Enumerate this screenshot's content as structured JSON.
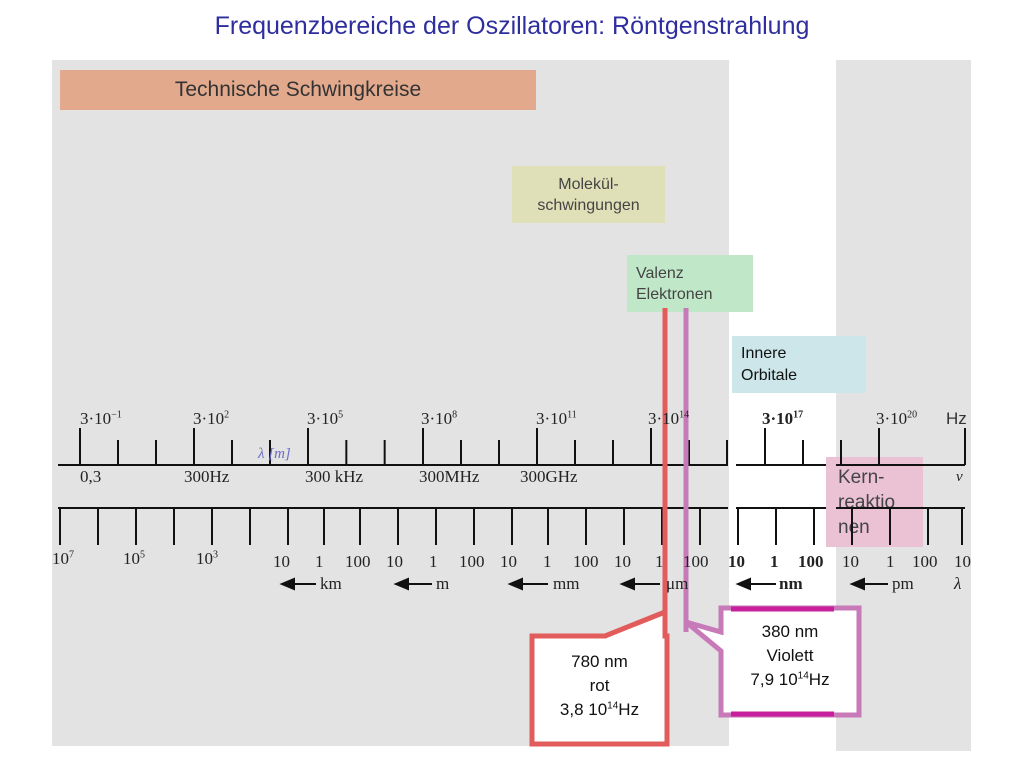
{
  "title": "Frequenzbereiche der Oszillatoren: Röntgenstrahlung",
  "colors": {
    "panel": "#e3e3e3",
    "technische": "#e2a98d",
    "molekuel": "#e0e0b8",
    "valenz": "#c0e8c8",
    "innere": "#cde6ea",
    "kern": "#ebc1d4",
    "red_line": "#e25c5c",
    "violet_line": "#c779b8",
    "violet_frame": "#c71f9d"
  },
  "regions": {
    "technische": "Technische Schwingkreise",
    "molekuel_1": "Molekül-",
    "molekuel_2": "schwingungen",
    "valenz_1": "Valenz",
    "valenz_2": "Elektronen",
    "innere_1": "Innere",
    "innere_2": "Orbitale",
    "kern_1": "Kern-",
    "kern_2": "reaktio",
    "kern_3": "nen"
  },
  "scale": {
    "freq_top": [
      {
        "base": "3·10",
        "exp": "−1"
      },
      {
        "base": "3·10",
        "exp": "2"
      },
      {
        "base": "3·10",
        "exp": "5"
      },
      {
        "base": "3·10",
        "exp": "8"
      },
      {
        "base": "3·10",
        "exp": "11"
      },
      {
        "base": "3·10",
        "exp": "14"
      },
      {
        "base": "3·10",
        "exp": "17"
      },
      {
        "base": "3·10",
        "exp": "20"
      }
    ],
    "freq_unit": "Hz",
    "freq_bottom": [
      "0,3",
      "300Hz",
      "300 kHz",
      "300MHz",
      "300GHz"
    ],
    "nu_symbol": "ν",
    "lambda_label": "λ [m]",
    "wl_pow_1": {
      "base": "10",
      "exp": "7"
    },
    "wl_pow_2": {
      "base": "10",
      "exp": "5"
    },
    "wl_pow_3": {
      "base": "10",
      "exp": "3"
    },
    "wl_groups": [
      [
        "10",
        "1",
        "100"
      ],
      [
        "10",
        "1",
        "100"
      ],
      [
        "10",
        "1",
        "100"
      ],
      [
        "10",
        "1",
        "100"
      ],
      [
        "10",
        "1",
        "100"
      ],
      [
        "10",
        "1",
        "100"
      ]
    ],
    "wl_end": "10",
    "wl_units": [
      "km",
      "m",
      "mm",
      "μm",
      "nm",
      "pm"
    ],
    "lambda_symbol": "λ"
  },
  "callouts": {
    "red_1": "780 nm",
    "red_2": "rot",
    "red_3_base": "3,8 10",
    "red_3_exp": "14",
    "red_3_unit": "Hz",
    "violet_1": "380 nm",
    "violet_2": "Violett",
    "violet_3_base": "7,9 10",
    "violet_3_exp": "14",
    "violet_3_unit": "Hz"
  }
}
